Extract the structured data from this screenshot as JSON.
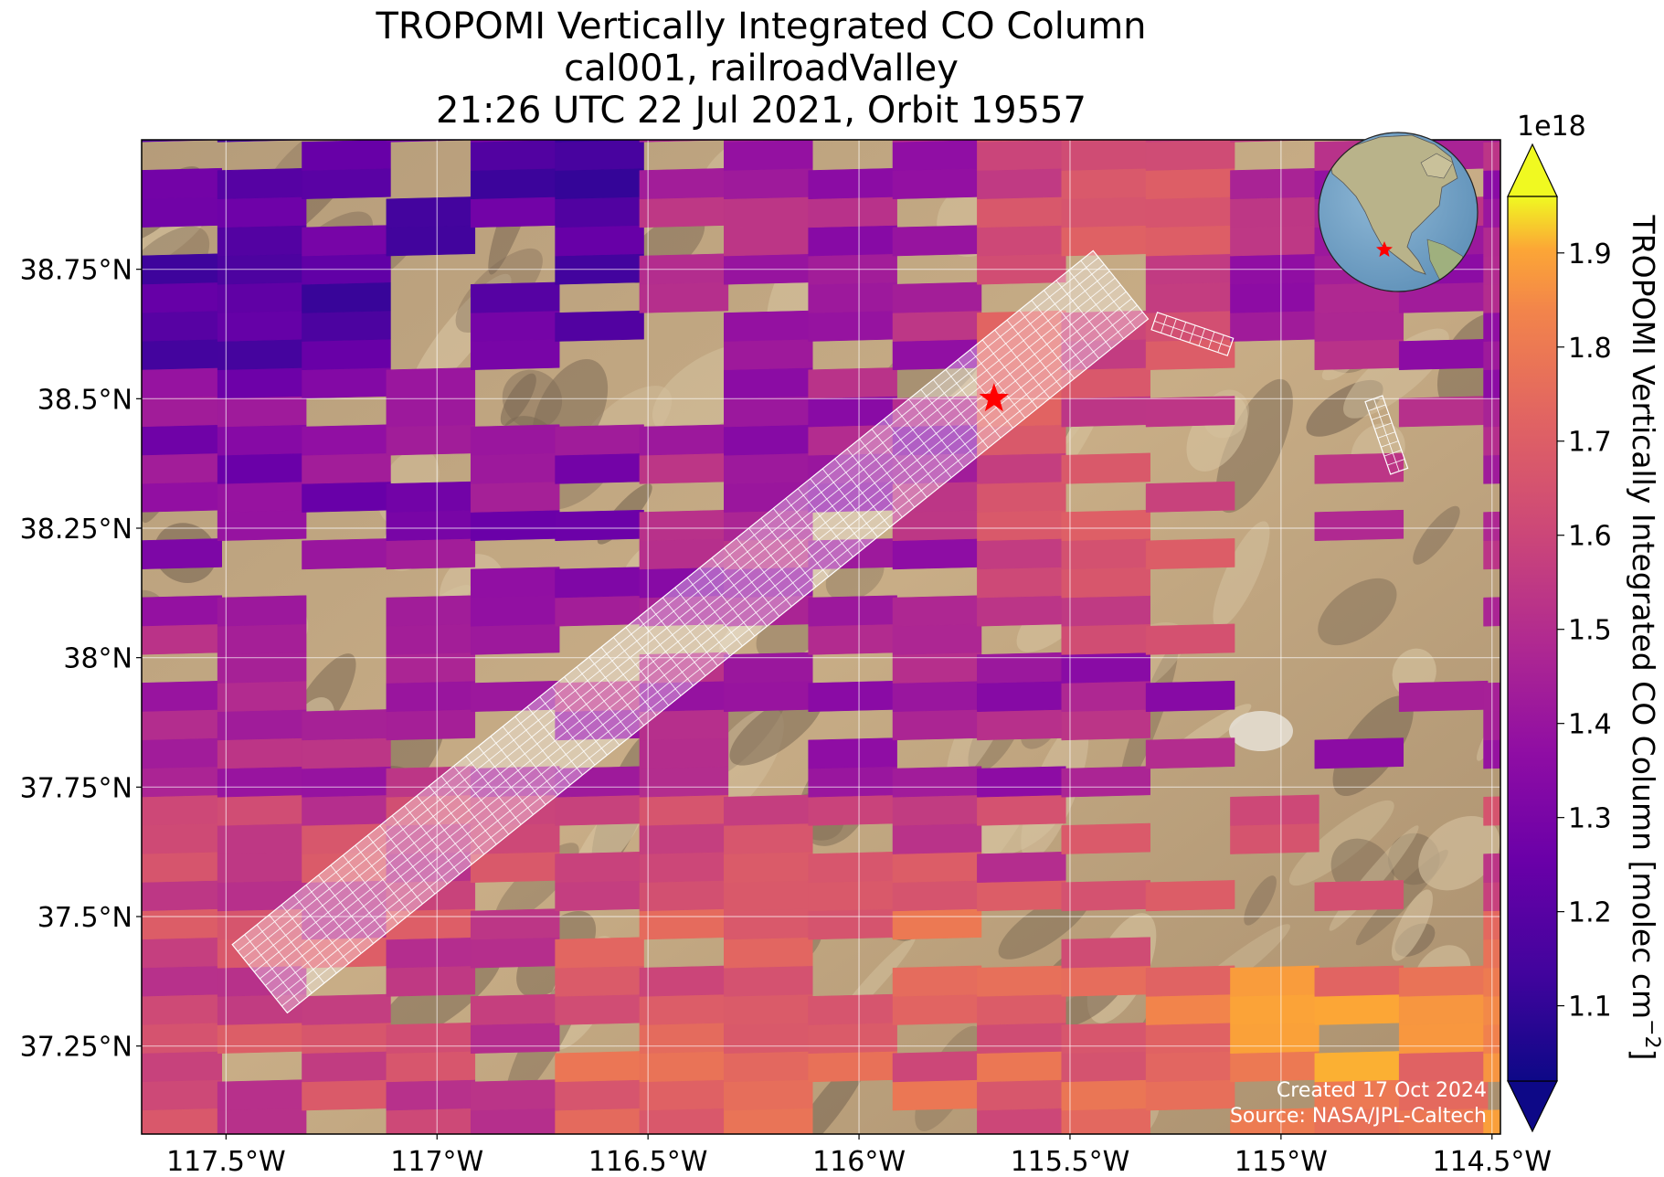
{
  "title": {
    "line1": "TROPOMI Vertically Integrated CO Column",
    "line2": "cal001, railroadValley",
    "line3": "21:26 UTC 22 Jul 2021, Orbit 19557"
  },
  "map": {
    "lon_range": [
      -117.7,
      -114.48
    ],
    "lat_range": [
      37.08,
      39.0
    ],
    "x_ticks": [
      {
        "lon": -117.5,
        "label": "117.5°W"
      },
      {
        "lon": -117.0,
        "label": "117°W"
      },
      {
        "lon": -116.5,
        "label": "116.5°W"
      },
      {
        "lon": -116.0,
        "label": "116°W"
      },
      {
        "lon": -115.5,
        "label": "115.5°W"
      },
      {
        "lon": -115.0,
        "label": "115°W"
      },
      {
        "lon": -114.5,
        "label": "114.5°W"
      }
    ],
    "y_ticks": [
      {
        "lat": 38.75,
        "label": "38.75°N"
      },
      {
        "lat": 38.5,
        "label": "38.5°N"
      },
      {
        "lat": 38.25,
        "label": "38.25°N"
      },
      {
        "lat": 38.0,
        "label": "38°N"
      },
      {
        "lat": 37.75,
        "label": "37.75°N"
      },
      {
        "lat": 37.5,
        "label": "37.5°N"
      },
      {
        "lat": 37.25,
        "label": "37.25°N"
      }
    ],
    "site_marker": {
      "lon": -115.68,
      "lat": 38.5,
      "color": "#ff0000",
      "icon": "star-icon"
    },
    "background": "desert-terrain-satellite",
    "target_swath": {
      "start": [
        -117.42,
        37.38
      ],
      "end": [
        -115.38,
        38.72
      ],
      "color": "#ffffff"
    },
    "extra_swaths": [
      {
        "start": [
          -115.3,
          38.65
        ],
        "end": [
          -115.12,
          38.6
        ]
      },
      {
        "start": [
          -114.78,
          38.5
        ],
        "end": [
          -114.72,
          38.36
        ]
      }
    ],
    "credit_line1": "Created 17 Oct 2024",
    "credit_line2": "Source: NASA/JPL-Caltech"
  },
  "colorbar": {
    "label": "TROPOMI Vertically Integrated CO Column [molec cm",
    "label_sup": "−2",
    "label_end": "]",
    "multiplier": "1e18",
    "vmin": 1.02,
    "vmax": 1.96,
    "ticks": [
      "1.1",
      "1.2",
      "1.3",
      "1.4",
      "1.5",
      "1.6",
      "1.7",
      "1.8",
      "1.9"
    ],
    "colormap": "plasma"
  },
  "inset_globe": {
    "marker_color": "#ff0000",
    "icon": "globe-icon"
  }
}
